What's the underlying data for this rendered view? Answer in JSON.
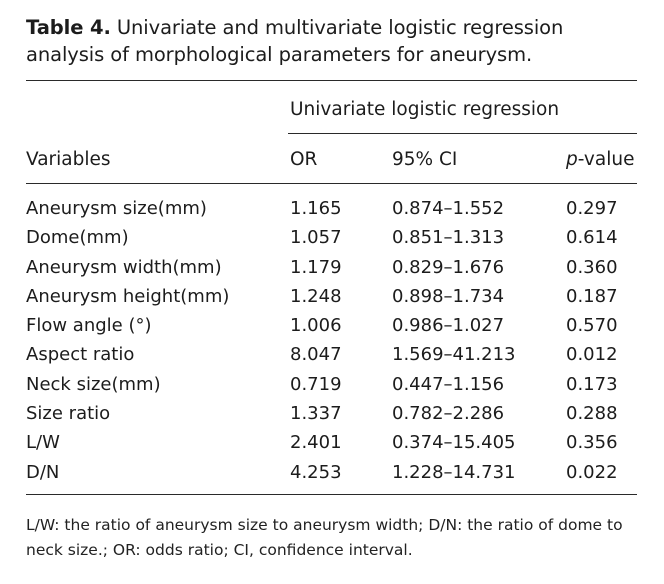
{
  "caption": {
    "label": "Table 4.",
    "text": " Univariate and multivariate logistic regression analysis of morphological parameters for aneurysm."
  },
  "table": {
    "group_header": "Univariate logistic regression",
    "columns": {
      "variables": "Variables",
      "or": "OR",
      "ci": "95% CI",
      "p_prefix": "p",
      "p_suffix": "-value"
    },
    "rows": [
      {
        "variable": "Aneurysm size(mm)",
        "or": "1.165",
        "ci": "0.874–1.552",
        "p": "0.297"
      },
      {
        "variable": "Dome(mm)",
        "or": "1.057",
        "ci": "0.851–1.313",
        "p": "0.614"
      },
      {
        "variable": "Aneurysm width(mm)",
        "or": "1.179",
        "ci": "0.829–1.676",
        "p": "0.360"
      },
      {
        "variable": "Aneurysm height(mm)",
        "or": "1.248",
        "ci": "0.898–1.734",
        "p": "0.187"
      },
      {
        "variable": "Flow angle (°)",
        "or": "1.006",
        "ci": "0.986–1.027",
        "p": "0.570"
      },
      {
        "variable": "Aspect ratio",
        "or": "8.047",
        "ci": "1.569–41.213",
        "p": "0.012"
      },
      {
        "variable": "Neck size(mm)",
        "or": "0.719",
        "ci": "0.447–1.156",
        "p": "0.173"
      },
      {
        "variable": "Size ratio",
        "or": "1.337",
        "ci": "0.782–2.286",
        "p": "0.288"
      },
      {
        "variable": "L/W",
        "or": "2.401",
        "ci": "0.374–15.405",
        "p": "0.356"
      },
      {
        "variable": "D/N",
        "or": "4.253",
        "ci": "1.228–14.731",
        "p": "0.022"
      }
    ]
  },
  "footnote": "L/W: the ratio of aneurysm size to aneurysm width; D/N: the ratio of dome to neck size.; OR: odds ratio; CI, confidence interval."
}
